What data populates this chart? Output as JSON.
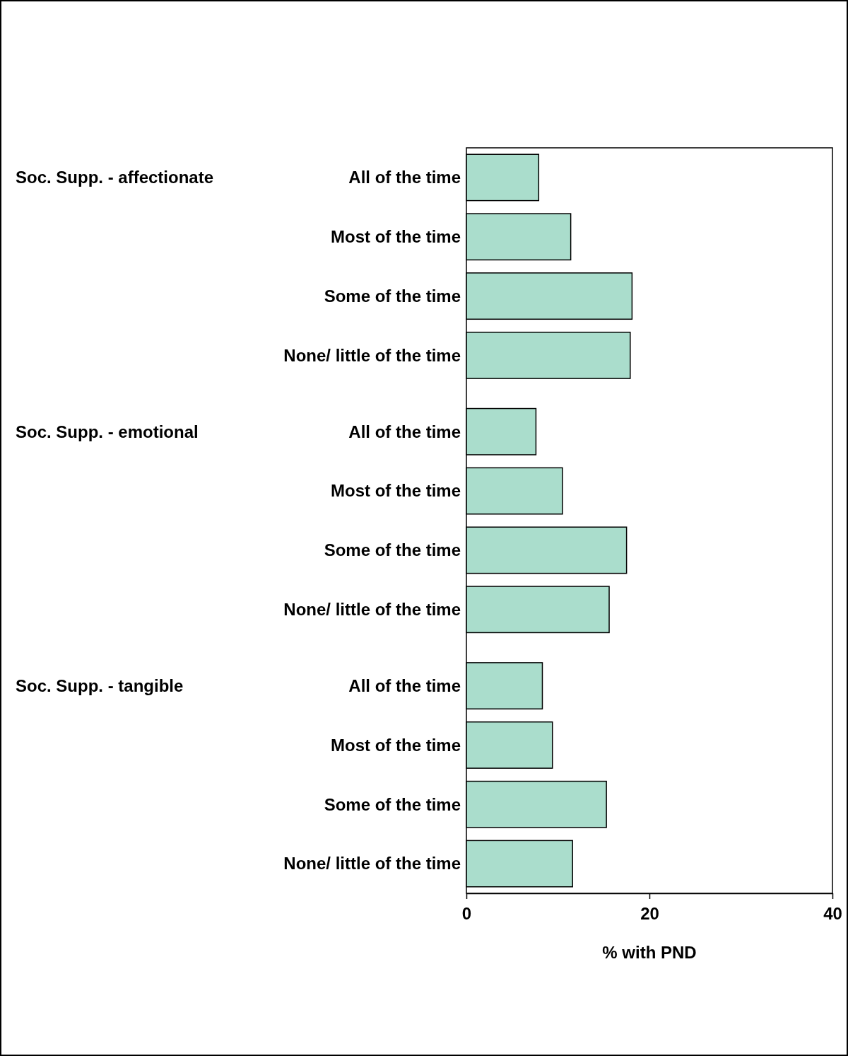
{
  "chart_data": {
    "type": "bar",
    "orientation": "horizontal",
    "categories": [
      "All of the time",
      "Most of the time",
      "Some of the time",
      "None/ little of the time",
      "All of the time",
      "Most of the time",
      "Some of the time",
      "None/ little of the time",
      "All of the time",
      "Most of the time",
      "Some of the time",
      "None/ little of the time"
    ],
    "values": [
      7.9,
      11.4,
      18.1,
      17.9,
      7.6,
      10.5,
      17.5,
      15.6,
      8.3,
      9.4,
      15.3,
      11.6
    ],
    "color": "#aaddcc",
    "xlim": [
      0,
      40
    ],
    "xticks": [
      0,
      20,
      40
    ],
    "xlabel": "% with PND",
    "annotations": [
      "Soc. Supp. - affectionate",
      "Soc. Supp. - emotional",
      "Soc. Supp. - tangible"
    ]
  }
}
